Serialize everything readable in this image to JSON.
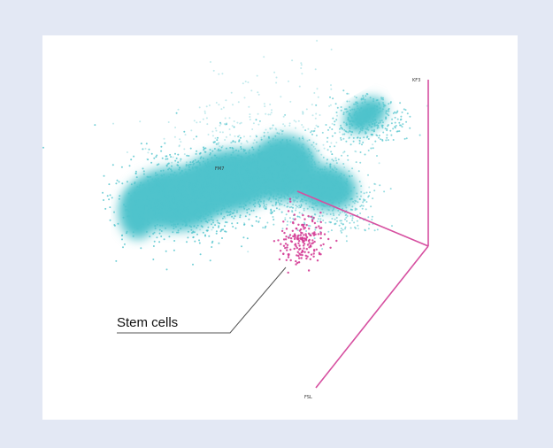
{
  "chart_data": {
    "type": "scatter",
    "title": "",
    "colors": {
      "other": "#4fc3cc",
      "stem": "#d43d96",
      "axis": "#d64fa0",
      "leader": "#555555"
    },
    "axes": [
      {
        "label": "KF3"
      },
      {
        "label": "FSL"
      }
    ],
    "cluster_labels": [
      {
        "text": "FM7"
      }
    ],
    "annotations": [
      {
        "text": "Stem cells",
        "target_series": "stem"
      }
    ],
    "series": [
      {
        "key": "other"
      },
      {
        "key": "stem"
      }
    ]
  }
}
